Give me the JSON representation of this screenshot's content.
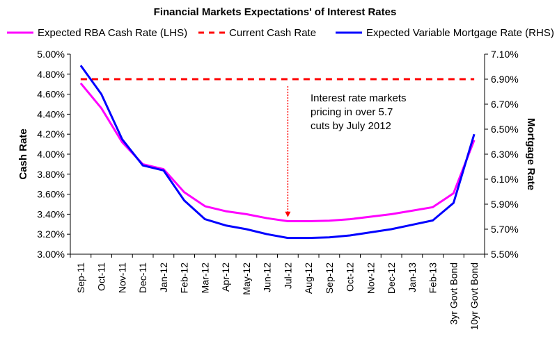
{
  "chart_data": {
    "type": "line",
    "title": "Financial Markets Expectations' of Interest Rates",
    "categories": [
      "Sep-11",
      "Oct-11",
      "Nov-11",
      "Dec-11",
      "Jan-12",
      "Feb-12",
      "Mar-12",
      "Apr-12",
      "May-12",
      "Jun-12",
      "Jul-12",
      "Aug-12",
      "Sep-12",
      "Oct-12",
      "Nov-12",
      "Dec-12",
      "Jan-13",
      "Feb-13",
      "3yr Govt Bond",
      "10yr Govt Bond"
    ],
    "left_axis": {
      "label": "Cash Rate",
      "ylim": [
        3.0,
        5.0
      ],
      "ticks": [
        "3.00%",
        "3.20%",
        "3.40%",
        "3.60%",
        "3.80%",
        "4.00%",
        "4.20%",
        "4.40%",
        "4.60%",
        "4.80%",
        "5.00%"
      ]
    },
    "right_axis": {
      "label": "Mortgage Rate",
      "ylim": [
        5.5,
        7.1
      ],
      "ticks": [
        "5.50%",
        "5.70%",
        "5.90%",
        "6.10%",
        "6.30%",
        "6.50%",
        "6.70%",
        "6.90%",
        "7.10%"
      ]
    },
    "series": [
      {
        "name": "Expected RBA Cash Rate (LHS)",
        "axis": "left",
        "color": "#ff00ff",
        "style": "solid",
        "values": [
          4.71,
          4.46,
          4.12,
          3.9,
          3.85,
          3.62,
          3.48,
          3.43,
          3.4,
          3.36,
          3.33,
          3.33,
          3.335,
          3.35,
          3.375,
          3.4,
          3.435,
          3.47,
          3.61,
          4.14
        ]
      },
      {
        "name": "Current Cash Rate",
        "axis": "left",
        "color": "#ff0000",
        "style": "dashed",
        "values": [
          4.75,
          4.75,
          4.75,
          4.75,
          4.75,
          4.75,
          4.75,
          4.75,
          4.75,
          4.75,
          4.75,
          4.75,
          4.75,
          4.75,
          4.75,
          4.75,
          4.75,
          4.75,
          4.75,
          4.75
        ]
      },
      {
        "name": "Expected Variable Mortgage Rate (RHS)",
        "axis": "right",
        "color": "#0000ff",
        "style": "solid",
        "values": [
          7.01,
          6.78,
          6.42,
          6.21,
          6.17,
          5.93,
          5.78,
          5.73,
          5.7,
          5.66,
          5.63,
          5.63,
          5.635,
          5.65,
          5.675,
          5.7,
          5.735,
          5.77,
          5.91,
          6.46
        ]
      }
    ],
    "annotation": {
      "lines": [
        "Interest rate markets",
        "pricing in over 5.7",
        "cuts by July 2012"
      ],
      "arrow": {
        "category": "Jul-12",
        "from_value": 4.68,
        "to_value": 3.37,
        "color": "#ff0000"
      }
    },
    "legend": "top",
    "grid": false
  }
}
